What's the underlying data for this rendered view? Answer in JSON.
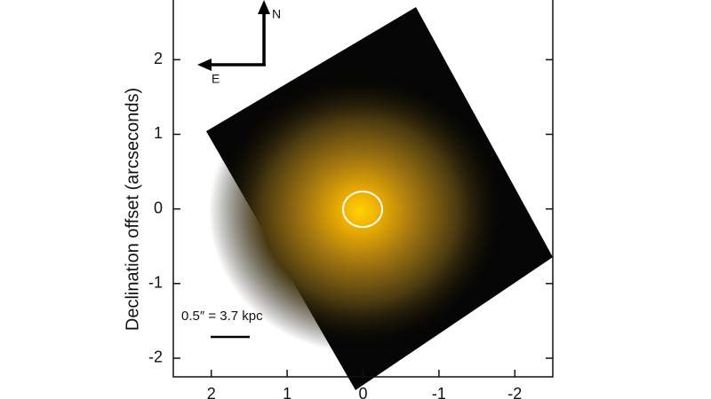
{
  "chart_data": {
    "type": "image",
    "ylabel": "Declination offset (arcseconds)",
    "xlim": [
      2.5,
      -2.5
    ],
    "xticks": [
      2,
      1,
      0,
      -1,
      -2
    ],
    "ylim": [
      -2.25,
      2.8
    ],
    "yticks": [
      2,
      1,
      0,
      -1,
      -2
    ],
    "annotations": [
      "N",
      "E",
      "0.5″ = 3.7 kpc"
    ]
  }
}
